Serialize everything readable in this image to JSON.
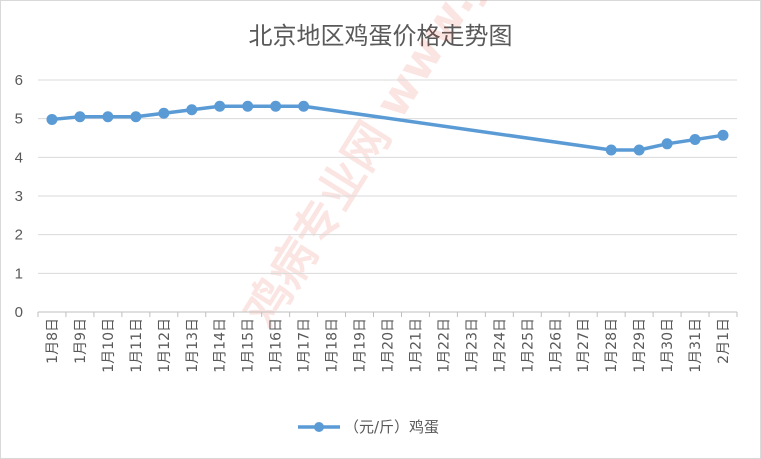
{
  "chart_data": {
    "type": "line",
    "title": "北京地区鸡蛋价格走势图",
    "categories": [
      "1月8日",
      "1月9日",
      "1月10日",
      "1月11日",
      "1月12日",
      "1月13日",
      "1月14日",
      "1月15日",
      "1月16日",
      "1月17日",
      "1月18日",
      "1月19日",
      "1月20日",
      "1月21日",
      "1月22日",
      "1月23日",
      "1月24日",
      "1月25日",
      "1月26日",
      "1月27日",
      "1月28日",
      "1月29日",
      "1月30日",
      "1月31日",
      "2月1日"
    ],
    "series": [
      {
        "name": "（元/斤）鸡蛋",
        "color": "#5b9bd5",
        "values": [
          4.98,
          5.05,
          5.05,
          5.05,
          5.14,
          5.23,
          5.32,
          5.32,
          5.32,
          5.32,
          null,
          null,
          null,
          null,
          null,
          null,
          null,
          null,
          null,
          null,
          4.19,
          4.19,
          4.35,
          4.46,
          4.57
        ]
      }
    ],
    "ylim": [
      0,
      6
    ],
    "yticks": [
      0,
      1,
      2,
      3,
      4,
      5,
      6
    ],
    "grid": true,
    "legend": "bottom",
    "watermark": "鸡病专业网 www.jbzyw.com"
  }
}
